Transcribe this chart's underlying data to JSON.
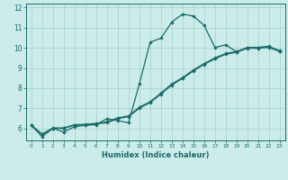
{
  "xlabel": "Humidex (Indice chaleur)",
  "background_color": "#ccecea",
  "line_color": "#1a6b6b",
  "grid_color": "#aad4d0",
  "xlim": [
    -0.5,
    23.5
  ],
  "ylim": [
    5.4,
    12.2
  ],
  "yticks": [
    6,
    7,
    8,
    9,
    10,
    11,
    12
  ],
  "xticks": [
    0,
    1,
    2,
    3,
    4,
    5,
    6,
    7,
    8,
    9,
    10,
    11,
    12,
    13,
    14,
    15,
    16,
    17,
    18,
    19,
    20,
    21,
    22,
    23
  ],
  "line1_x": [
    0,
    1,
    2,
    3,
    4,
    5,
    6,
    7,
    8,
    9,
    10,
    11,
    12,
    13,
    14,
    15,
    16,
    17,
    18,
    19,
    20,
    21,
    22,
    23
  ],
  "line1_y": [
    6.15,
    5.58,
    6.0,
    5.82,
    6.08,
    6.15,
    6.18,
    6.48,
    6.38,
    6.28,
    8.2,
    10.28,
    10.48,
    11.28,
    11.68,
    11.58,
    11.12,
    10.02,
    10.15,
    9.8,
    10.0,
    10.02,
    10.08,
    9.82
  ],
  "line2_x": [
    0,
    1,
    2,
    3,
    4,
    5,
    6,
    7,
    8,
    9,
    10,
    11,
    12,
    13,
    14,
    15,
    16,
    17,
    18,
    19,
    20,
    21,
    22,
    23
  ],
  "line2_y": [
    6.15,
    5.7,
    6.0,
    6.0,
    6.15,
    6.18,
    6.22,
    6.28,
    6.48,
    6.58,
    7.0,
    7.28,
    7.7,
    8.15,
    8.48,
    8.85,
    9.18,
    9.45,
    9.68,
    9.78,
    9.98,
    9.98,
    10.02,
    9.82
  ],
  "line3_x": [
    0,
    1,
    2,
    3,
    4,
    5,
    6,
    7,
    8,
    9,
    10,
    11,
    12,
    13,
    14,
    15,
    16,
    17,
    18,
    19,
    20,
    21,
    22,
    23
  ],
  "line3_y": [
    6.15,
    5.72,
    6.02,
    6.02,
    6.18,
    6.2,
    6.25,
    6.32,
    6.52,
    6.62,
    7.05,
    7.32,
    7.75,
    8.2,
    8.52,
    8.9,
    9.22,
    9.5,
    9.72,
    9.82,
    10.02,
    10.02,
    10.06,
    9.86
  ]
}
